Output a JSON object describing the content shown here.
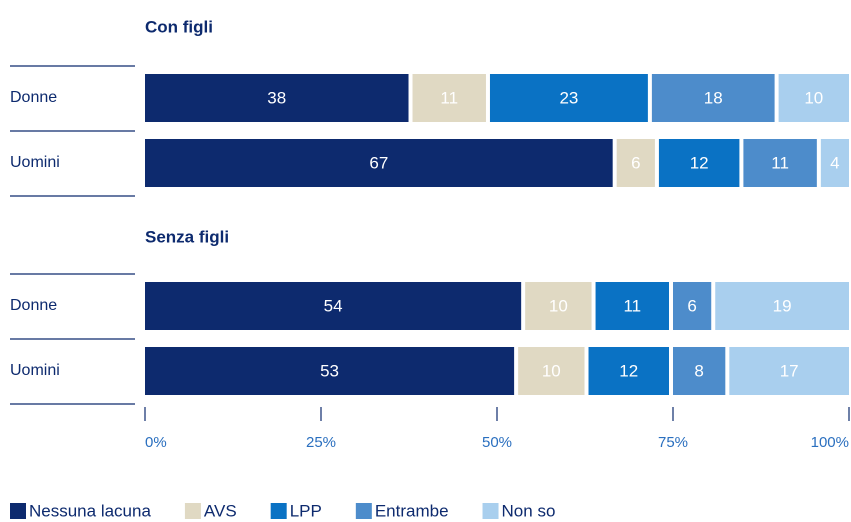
{
  "chart_data": [
    {
      "type": "bar",
      "title": "Con figli",
      "categories": [
        "Donne",
        "Uomini"
      ],
      "series": [
        {
          "name": "Nessuna lacuna",
          "color": "#0d2a6e",
          "values": [
            38,
            67
          ]
        },
        {
          "name": "AVS",
          "color": "#e0d9c3",
          "values": [
            11,
            6
          ]
        },
        {
          "name": "LPP",
          "color": "#0a72c4",
          "values": [
            23,
            12
          ]
        },
        {
          "name": "Entrambe",
          "color": "#4d8ccb",
          "values": [
            18,
            11
          ]
        },
        {
          "name": "Non so",
          "color": "#a9cfee",
          "values": [
            10,
            4
          ]
        }
      ],
      "xlim": [
        0,
        100
      ]
    },
    {
      "type": "bar",
      "title": "Senza figli",
      "categories": [
        "Donne",
        "Uomini"
      ],
      "series": [
        {
          "name": "Nessuna lacuna",
          "color": "#0d2a6e",
          "values": [
            54,
            53
          ]
        },
        {
          "name": "AVS",
          "color": "#e0d9c3",
          "values": [
            10,
            10
          ]
        },
        {
          "name": "LPP",
          "color": "#0a72c4",
          "values": [
            11,
            12
          ]
        },
        {
          "name": "Entrambe",
          "color": "#4d8ccb",
          "values": [
            6,
            8
          ]
        },
        {
          "name": "Non so",
          "color": "#a9cfee",
          "values": [
            19,
            17
          ]
        }
      ],
      "xlim": [
        0,
        100
      ],
      "xticks": [
        {
          "value": 0,
          "label": "0%"
        },
        {
          "value": 25,
          "label": "25%"
        },
        {
          "value": 50,
          "label": "50%"
        },
        {
          "value": 75,
          "label": "75%"
        },
        {
          "value": 100,
          "label": "100%"
        }
      ]
    }
  ]
}
